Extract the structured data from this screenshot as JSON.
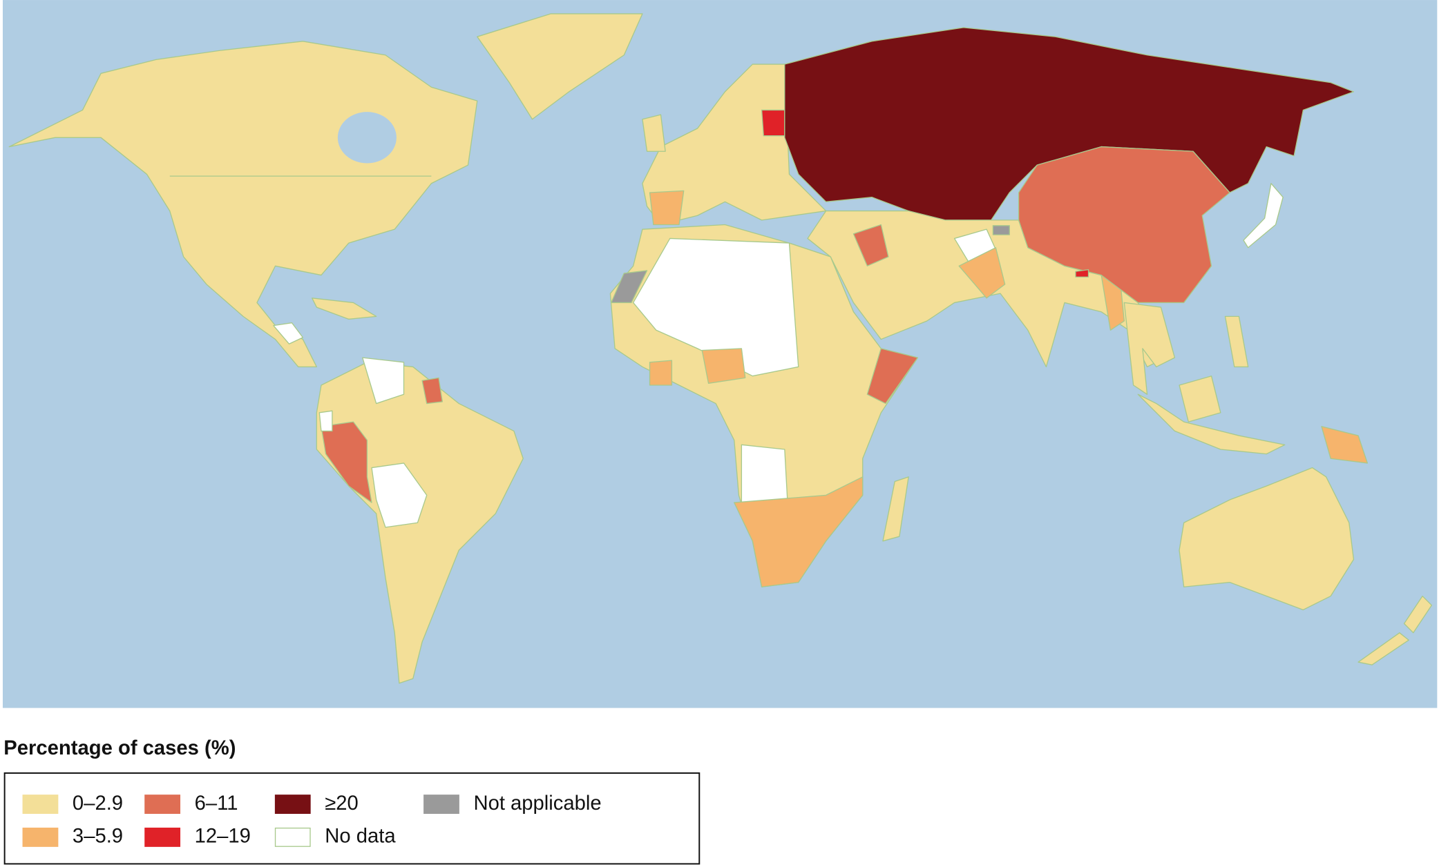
{
  "legend": {
    "title": "Percentage of cases (%)",
    "items": [
      {
        "label": "0–2.9",
        "color": "#f3df98"
      },
      {
        "label": "3–5.9",
        "color": "#f6b46c"
      },
      {
        "label": "6–11",
        "color": "#df6e54"
      },
      {
        "label": "12–19",
        "color": "#e02228"
      },
      {
        "label": "≥20",
        "color": "#771014"
      },
      {
        "label": "No data",
        "color": "#ffffff"
      },
      {
        "label": "Not applicable",
        "color": "#9a9a9a"
      }
    ]
  }
}
